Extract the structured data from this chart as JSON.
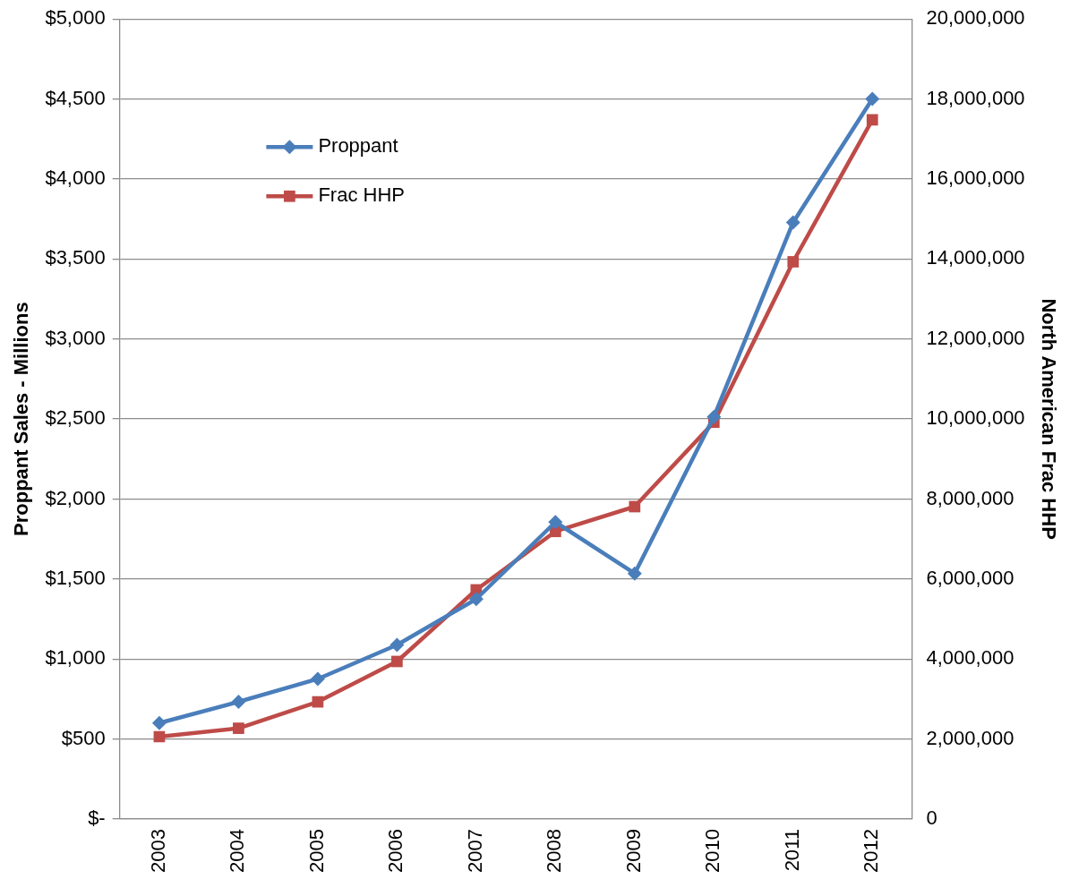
{
  "chart_data": {
    "type": "line",
    "ylabel": "Proppant Sales - Millions",
    "y2label": "North American Frac HHP",
    "categories": [
      "2003",
      "2004",
      "2005",
      "2006",
      "2007",
      "2008",
      "2009",
      "2010",
      "2011",
      "2012"
    ],
    "series": [
      {
        "name": "Proppant",
        "color": "#4a7ebb",
        "marker": "diamond",
        "values": [
          600,
          733,
          876,
          1088,
          1375,
          1856,
          1535,
          2514,
          3729,
          4500
        ]
      },
      {
        "name": "Frac HHP",
        "color": "#be4b48",
        "marker": "square",
        "axis": "y2",
        "values": [
          2060000,
          2270000,
          2930000,
          3940000,
          5730000,
          7190000,
          7810000,
          9920000,
          13930000,
          17480000
        ]
      }
    ],
    "ylim": [
      0,
      5000
    ],
    "yticks": [
      {
        "value": 0,
        "label": "$-"
      },
      {
        "value": 500,
        "label": "$500"
      },
      {
        "value": 1000,
        "label": "$1,000"
      },
      {
        "value": 1500,
        "label": "$1,500"
      },
      {
        "value": 2000,
        "label": "$2,000"
      },
      {
        "value": 2500,
        "label": "$2,500"
      },
      {
        "value": 3000,
        "label": "$3,000"
      },
      {
        "value": 3500,
        "label": "$3,500"
      },
      {
        "value": 4000,
        "label": "$4,000"
      },
      {
        "value": 4500,
        "label": "$4,500"
      },
      {
        "value": 5000,
        "label": "$5,000"
      }
    ],
    "y2lim": [
      0,
      20000000
    ],
    "y2ticks": [
      0,
      {
        "value": 2000000,
        "label": "2,000,000"
      },
      {
        "value": 4000000,
        "label": "4,000,000"
      },
      {
        "value": 6000000,
        "label": "6,000,000"
      },
      {
        "value": 8000000,
        "label": "8,000,000"
      },
      {
        "value": 10000000,
        "label": "10,000,000"
      },
      {
        "value": 12000000,
        "label": "12,000,000"
      },
      {
        "value": 14000000,
        "label": "14,000,000"
      },
      {
        "value": 16000000,
        "label": "16,000,000"
      },
      {
        "value": 18000000,
        "label": "18,000,000"
      },
      {
        "value": 20000000,
        "label": "20,000,000"
      }
    ],
    "grid": "y",
    "legend": "top left",
    "line_style": "solid"
  }
}
